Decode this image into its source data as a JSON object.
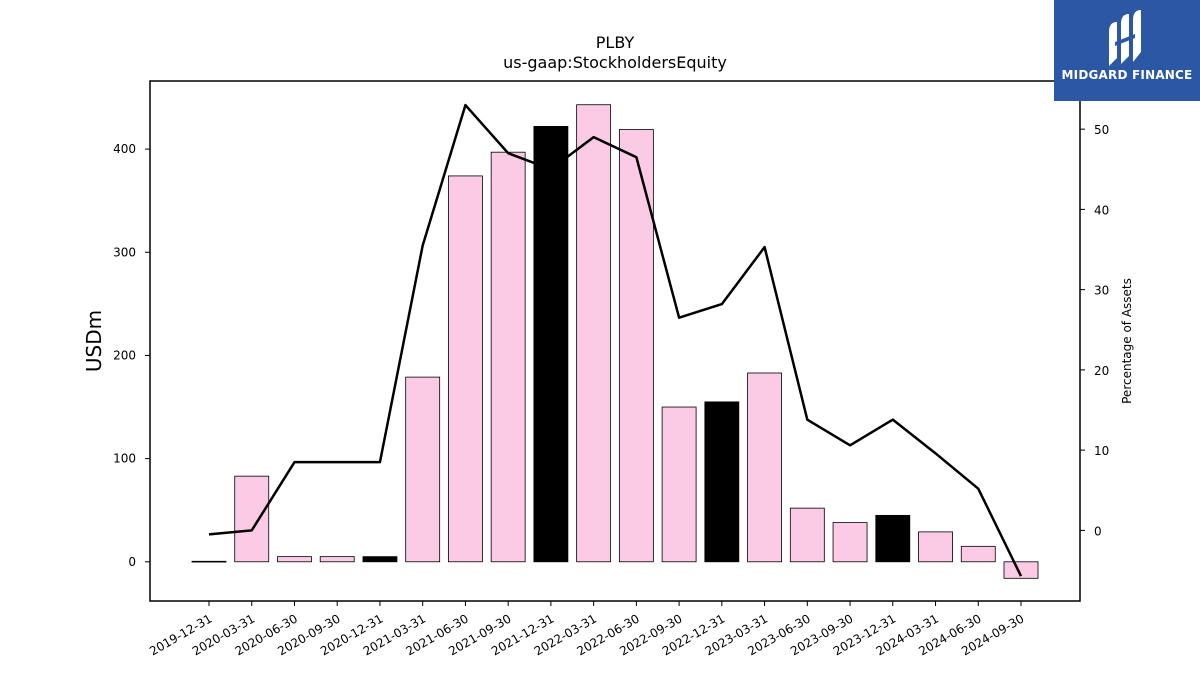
{
  "chart_data": {
    "type": "bar",
    "title": "PLBY",
    "subtitle": "us-gaap:StockholdersEquity",
    "ylabel": "USDm",
    "y2label": "Percentage of Assets",
    "categories": [
      "2019-12-31",
      "2020-03-31",
      "2020-06-30",
      "2020-09-30",
      "2020-12-31",
      "2021-03-31",
      "2021-06-30",
      "2021-09-30",
      "2021-12-31",
      "2022-03-31",
      "2022-06-30",
      "2022-09-30",
      "2022-12-31",
      "2023-03-31",
      "2023-06-30",
      "2023-09-30",
      "2023-12-31",
      "2024-03-31",
      "2024-06-30",
      "2024-09-30"
    ],
    "series": [
      {
        "type": "bar",
        "values": [
          0.5,
          83,
          5,
          5,
          5,
          179,
          374,
          397,
          422,
          443,
          419,
          150,
          155,
          183,
          52,
          38,
          45,
          29,
          15,
          -16
        ]
      },
      {
        "type": "line",
        "axis": "right",
        "values": [
          -0.5,
          0,
          8.5,
          8.5,
          8.5,
          35.5,
          53,
          47,
          45,
          49,
          46.5,
          26.5,
          28.2,
          35.3,
          13.8,
          10.6,
          13.8,
          9.6,
          5.2,
          -5.7
        ]
      }
    ],
    "highlight_categories": [
      "2020-12-31",
      "2021-12-31",
      "2022-12-31",
      "2023-12-31"
    ],
    "colors": {
      "bar": "#fbcae4",
      "highlight": "#000000",
      "line": "#000000"
    },
    "ylim": [
      -38,
      466
    ],
    "y2lim": [
      -8.8,
      56
    ],
    "yticks": [
      0,
      100,
      200,
      300,
      400
    ],
    "y2ticks": [
      0,
      10,
      20,
      30,
      40,
      50
    ]
  },
  "logo": {
    "text": "MIDGARD FINANCE",
    "color": "#2b57a5"
  }
}
